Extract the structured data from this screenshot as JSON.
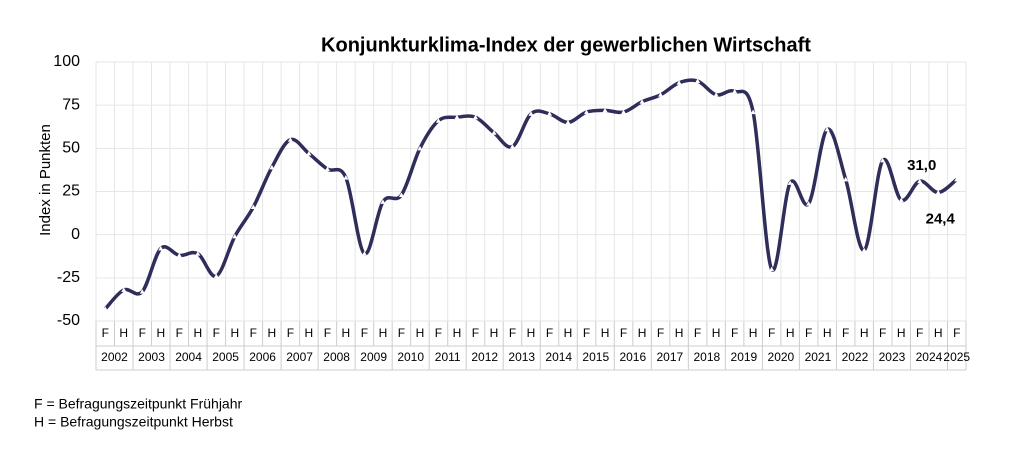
{
  "chart_data": {
    "type": "line",
    "title": "Konjunkturklima-Index der gewerblichen Wirtschaft",
    "y_label": "Index in Punkten",
    "categories": [
      "F",
      "H",
      "F",
      "H",
      "F",
      "H",
      "F",
      "H",
      "F",
      "H",
      "F",
      "H",
      "F",
      "H",
      "F",
      "H",
      "F",
      "H",
      "F",
      "H",
      "F",
      "H",
      "F",
      "H",
      "F",
      "H",
      "F",
      "H",
      "F",
      "H",
      "F",
      "H",
      "F",
      "H",
      "F",
      "H",
      "F",
      "H",
      "F",
      "H",
      "F",
      "H",
      "F",
      "H",
      "F",
      "H",
      "F"
    ],
    "years": [
      "2002",
      "2003",
      "2004",
      "2005",
      "2006",
      "2007",
      "2008",
      "2009",
      "2010",
      "2011",
      "2012",
      "2013",
      "2014",
      "2015",
      "2016",
      "2017",
      "2018",
      "2019",
      "2020",
      "2021",
      "2022",
      "2023",
      "2024",
      "2025"
    ],
    "series": [
      {
        "name": "Konjunkturklima-Index",
        "color": "#2f2d5a",
        "values": [
          -43,
          -32,
          -33,
          -8,
          -12,
          -11,
          -24,
          -1,
          16,
          39,
          55,
          47,
          38,
          33,
          -11,
          19,
          23,
          50,
          66,
          68,
          68,
          59,
          51,
          70,
          70,
          65,
          71,
          72,
          71,
          77,
          81,
          88,
          89,
          81,
          83,
          71,
          -20,
          30,
          18,
          61,
          32,
          -9,
          43,
          20,
          31,
          24.4,
          32
        ],
        "value_labels": [
          null,
          null,
          null,
          null,
          null,
          null,
          null,
          null,
          null,
          null,
          null,
          null,
          null,
          null,
          null,
          null,
          null,
          null,
          null,
          null,
          null,
          null,
          null,
          null,
          null,
          null,
          null,
          null,
          null,
          null,
          null,
          null,
          null,
          null,
          null,
          null,
          null,
          null,
          null,
          null,
          null,
          null,
          null,
          null,
          "31,0",
          "24,4",
          null
        ]
      }
    ],
    "ylim": [
      -50,
      100
    ],
    "yticks": [
      -50,
      -25,
      0,
      25,
      50,
      75,
      100
    ],
    "grid": true,
    "notes": [
      "F =  Befragungszeitpunkt Frühjahr",
      "H =  Befragungszeitpunkt Herbst"
    ]
  }
}
